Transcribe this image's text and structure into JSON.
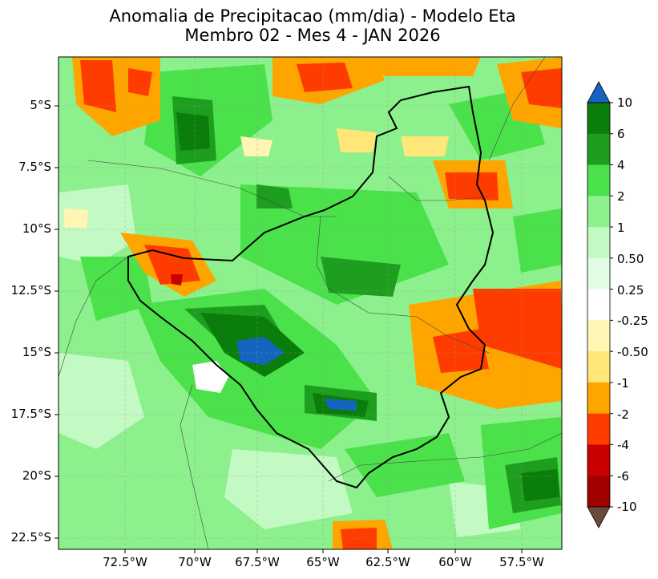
{
  "title": {
    "line1": "Anomalia de Precipitacao (mm/dia) - Modelo Eta",
    "line2": "Membro 02 - Mes 4 - JAN 2026"
  },
  "axes": {
    "y_ticks": [
      "5°S",
      "7.5°S",
      "10°S",
      "12.5°S",
      "15°S",
      "17.5°S",
      "20°S",
      "22.5°S"
    ],
    "x_ticks": [
      "72.5°W",
      "70°W",
      "67.5°W",
      "65°W",
      "62.5°W",
      "60°W",
      "57.5°W"
    ]
  },
  "colorbar": {
    "labels": [
      "10",
      "6",
      "4",
      "2",
      "1",
      "0.50",
      "0.25",
      "-0.25",
      "-0.50",
      "-1",
      "-2",
      "-4",
      "-6",
      "-10"
    ],
    "colors": [
      "#0a7d0a",
      "#1e9e1e",
      "#4be14b",
      "#8cf08c",
      "#c3fac3",
      "#e3fce3",
      "#ffffff",
      "#fff5b4",
      "#ffe678",
      "#ffa500",
      "#ff3c00",
      "#c80000",
      "#a00000"
    ],
    "top_arrow_color": "#1565c0",
    "bottom_arrow_color": "#6b4a3a"
  }
}
